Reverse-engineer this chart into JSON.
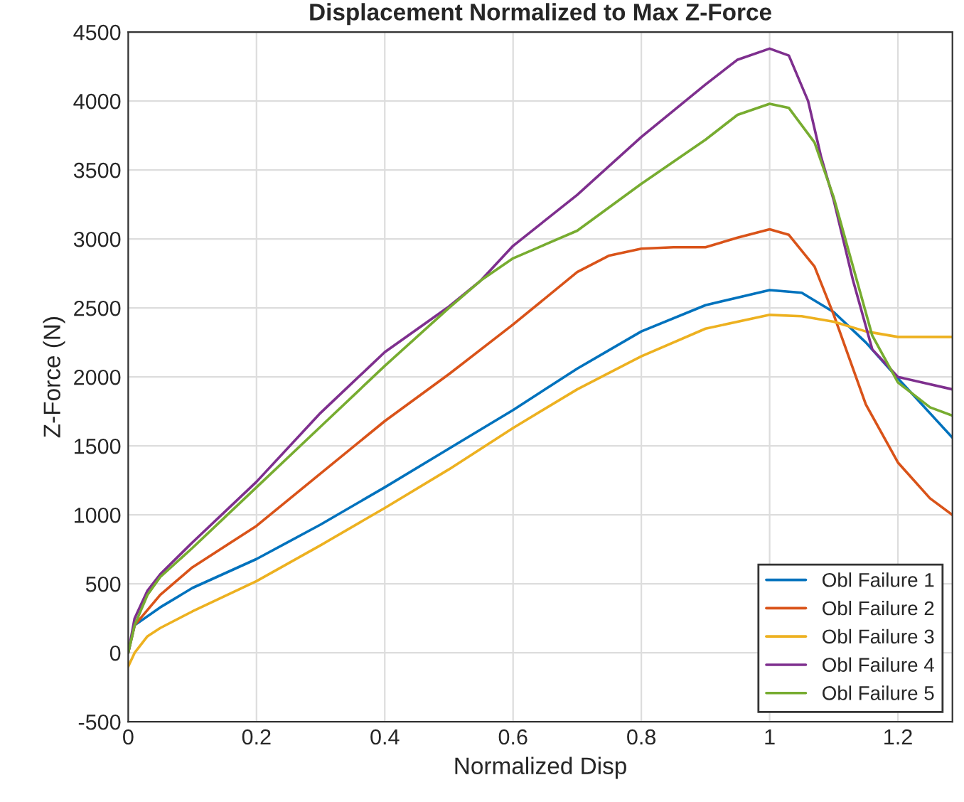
{
  "chart_data": {
    "type": "line",
    "title": "Displacement Normalized to Max Z-Force",
    "xlabel": "Normalized Disp",
    "ylabel": "Z-Force (N)",
    "xlim": [
      0,
      1.285
    ],
    "ylim": [
      -500,
      4500
    ],
    "xticks": [
      0,
      0.2,
      0.4,
      0.6,
      0.8,
      1,
      1.2
    ],
    "yticks": [
      -500,
      0,
      500,
      1000,
      1500,
      2000,
      2500,
      3000,
      3500,
      4000,
      4500
    ],
    "grid": true,
    "legend": "bottom right",
    "line_style": "solid",
    "marker": "none",
    "series": [
      {
        "name": "Obl Failure 1",
        "color": "#0072bd",
        "x": [
          0,
          0.01,
          0.05,
          0.1,
          0.2,
          0.3,
          0.4,
          0.5,
          0.6,
          0.7,
          0.8,
          0.9,
          1.0,
          1.05,
          1.1,
          1.15,
          1.2,
          1.285
        ],
        "values": [
          0,
          200,
          330,
          470,
          680,
          930,
          1200,
          1480,
          1760,
          2060,
          2330,
          2520,
          2630,
          2610,
          2470,
          2250,
          1990,
          1560
        ]
      },
      {
        "name": "Obl Failure 2",
        "color": "#d95319",
        "x": [
          0,
          0.01,
          0.05,
          0.1,
          0.2,
          0.3,
          0.4,
          0.5,
          0.6,
          0.7,
          0.75,
          0.8,
          0.85,
          0.9,
          0.95,
          1.0,
          1.03,
          1.07,
          1.1,
          1.15,
          1.2,
          1.25,
          1.285
        ],
        "values": [
          0,
          200,
          420,
          620,
          920,
          1300,
          1680,
          2020,
          2380,
          2760,
          2880,
          2930,
          2940,
          2940,
          3010,
          3070,
          3030,
          2800,
          2450,
          1800,
          1380,
          1120,
          1000
        ]
      },
      {
        "name": "Obl Failure 3",
        "color": "#edb120",
        "x": [
          0,
          0.01,
          0.03,
          0.05,
          0.1,
          0.2,
          0.3,
          0.4,
          0.5,
          0.6,
          0.7,
          0.8,
          0.9,
          1.0,
          1.05,
          1.1,
          1.15,
          1.2,
          1.285
        ],
        "values": [
          -100,
          0,
          120,
          180,
          300,
          520,
          780,
          1050,
          1330,
          1630,
          1910,
          2150,
          2350,
          2450,
          2440,
          2400,
          2330,
          2290,
          2290
        ]
      },
      {
        "name": "Obl Failure 4",
        "color": "#7e2f8e",
        "x": [
          0,
          0.01,
          0.03,
          0.05,
          0.1,
          0.2,
          0.3,
          0.4,
          0.5,
          0.55,
          0.6,
          0.7,
          0.8,
          0.9,
          0.95,
          1.0,
          1.03,
          1.06,
          1.08,
          1.1,
          1.13,
          1.16,
          1.2,
          1.285
        ],
        "values": [
          0,
          250,
          450,
          570,
          800,
          1240,
          1740,
          2180,
          2510,
          2700,
          2950,
          3320,
          3740,
          4120,
          4300,
          4380,
          4330,
          4000,
          3600,
          3280,
          2700,
          2200,
          2000,
          1910
        ]
      },
      {
        "name": "Obl Failure 5",
        "color": "#77ac30",
        "x": [
          0,
          0.01,
          0.03,
          0.05,
          0.1,
          0.2,
          0.3,
          0.4,
          0.5,
          0.55,
          0.6,
          0.65,
          0.7,
          0.8,
          0.9,
          0.95,
          1.0,
          1.03,
          1.07,
          1.1,
          1.13,
          1.16,
          1.2,
          1.25,
          1.285
        ],
        "values": [
          0,
          200,
          420,
          550,
          760,
          1200,
          1640,
          2080,
          2500,
          2700,
          2860,
          2960,
          3060,
          3400,
          3720,
          3900,
          3980,
          3950,
          3700,
          3300,
          2800,
          2300,
          1960,
          1780,
          1720
        ]
      }
    ]
  }
}
